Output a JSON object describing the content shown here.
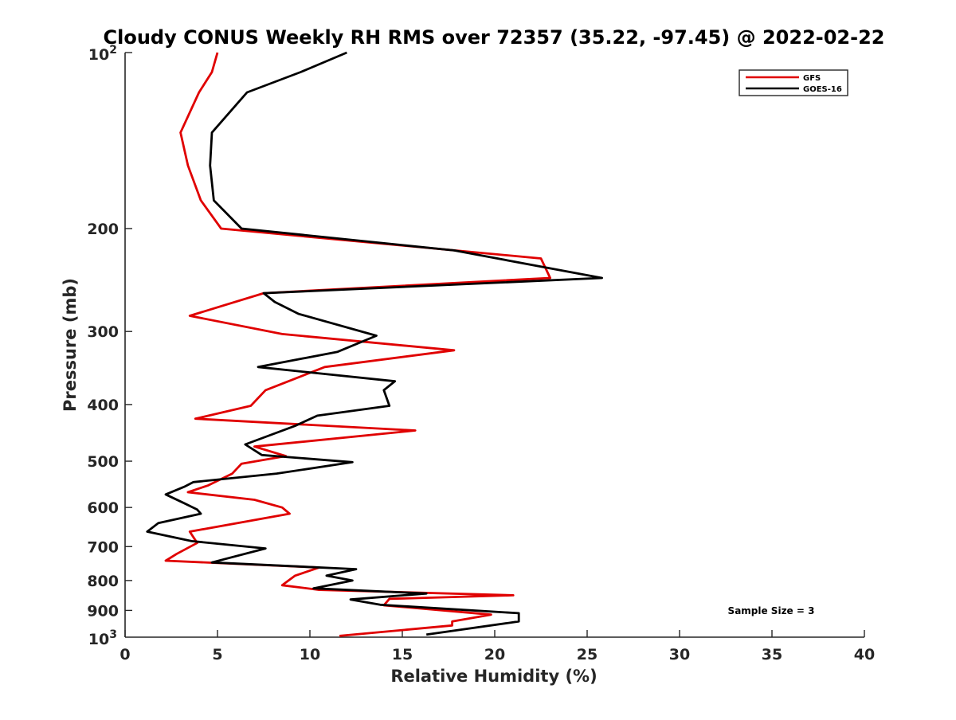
{
  "chart_data": {
    "type": "line",
    "title": "Cloudy CONUS Weekly RH RMS over 72357 (35.22, -97.45) @ 2022-02-22",
    "xlabel": "Relative Humidity (%)",
    "ylabel": "Pressure (mb)",
    "xlim": [
      0,
      40
    ],
    "ylim": [
      100,
      1000
    ],
    "y_scale": "log",
    "y_reversed": true,
    "x_ticks": [
      0,
      5,
      10,
      15,
      20,
      25,
      30,
      35,
      40
    ],
    "x_tick_labels": [
      "0",
      "5",
      "10",
      "15",
      "20",
      "25",
      "30",
      "35",
      "40"
    ],
    "y_ticks": [
      200,
      300,
      400,
      500,
      600,
      700,
      800,
      900
    ],
    "y_tick_labels": [
      "200",
      "300",
      "400",
      "500",
      "600",
      "700",
      "800",
      "900"
    ],
    "y_top_label": {
      "base": "10",
      "exp": "2"
    },
    "y_bottom_label": {
      "base": "10",
      "exp": "3"
    },
    "grid": false,
    "legend_position": "top-right",
    "annotation": "Sample Size = 3",
    "series": [
      {
        "name": "GFS",
        "color": "#e00000",
        "points": [
          [
            5.0,
            100
          ],
          [
            4.7,
            108
          ],
          [
            4.0,
            117
          ],
          [
            3.0,
            137
          ],
          [
            3.4,
            156
          ],
          [
            4.1,
            179
          ],
          [
            5.2,
            200
          ],
          [
            22.5,
            225
          ],
          [
            23.0,
            243
          ],
          [
            7.5,
            258
          ],
          [
            3.5,
            282
          ],
          [
            8.5,
            303
          ],
          [
            17.8,
            323
          ],
          [
            10.8,
            345
          ],
          [
            7.6,
            378
          ],
          [
            6.8,
            402
          ],
          [
            3.8,
            423
          ],
          [
            15.7,
            443
          ],
          [
            7.0,
            472
          ],
          [
            8.7,
            490
          ],
          [
            6.3,
            505
          ],
          [
            5.8,
            525
          ],
          [
            4.5,
            550
          ],
          [
            3.4,
            565
          ],
          [
            7.0,
            582
          ],
          [
            8.5,
            600
          ],
          [
            8.9,
            615
          ],
          [
            3.5,
            660
          ],
          [
            3.9,
            690
          ],
          [
            2.8,
            720
          ],
          [
            2.2,
            740
          ],
          [
            10.5,
            760
          ],
          [
            9.2,
            785
          ],
          [
            8.5,
            815
          ],
          [
            10.5,
            830
          ],
          [
            21.0,
            848
          ],
          [
            14.3,
            860
          ],
          [
            14.0,
            882
          ],
          [
            19.8,
            915
          ],
          [
            17.7,
            940
          ],
          [
            17.7,
            955
          ],
          [
            11.6,
            995
          ]
        ]
      },
      {
        "name": "GOES-16",
        "color": "#000000",
        "points": [
          [
            12.0,
            100
          ],
          [
            9.5,
            108
          ],
          [
            6.6,
            117
          ],
          [
            4.7,
            137
          ],
          [
            4.6,
            156
          ],
          [
            4.8,
            179
          ],
          [
            6.3,
            200
          ],
          [
            17.8,
            218
          ],
          [
            25.8,
            243
          ],
          [
            7.5,
            258
          ],
          [
            8.1,
            267
          ],
          [
            9.4,
            280
          ],
          [
            13.6,
            305
          ],
          [
            11.5,
            325
          ],
          [
            7.2,
            345
          ],
          [
            14.6,
            365
          ],
          [
            14.0,
            378
          ],
          [
            14.3,
            402
          ],
          [
            10.4,
            418
          ],
          [
            9.2,
            435
          ],
          [
            6.5,
            468
          ],
          [
            7.4,
            488
          ],
          [
            12.3,
            502
          ],
          [
            8.2,
            525
          ],
          [
            3.7,
            543
          ],
          [
            3.2,
            553
          ],
          [
            2.2,
            570
          ],
          [
            3.2,
            590
          ],
          [
            3.9,
            605
          ],
          [
            4.1,
            615
          ],
          [
            1.8,
            638
          ],
          [
            1.2,
            660
          ],
          [
            3.6,
            685
          ],
          [
            7.6,
            705
          ],
          [
            4.7,
            745
          ],
          [
            12.5,
            765
          ],
          [
            10.9,
            785
          ],
          [
            12.3,
            800
          ],
          [
            10.2,
            825
          ],
          [
            16.3,
            842
          ],
          [
            12.2,
            862
          ],
          [
            13.8,
            880
          ],
          [
            21.3,
            910
          ],
          [
            21.3,
            940
          ],
          [
            16.3,
            990
          ]
        ]
      }
    ]
  }
}
